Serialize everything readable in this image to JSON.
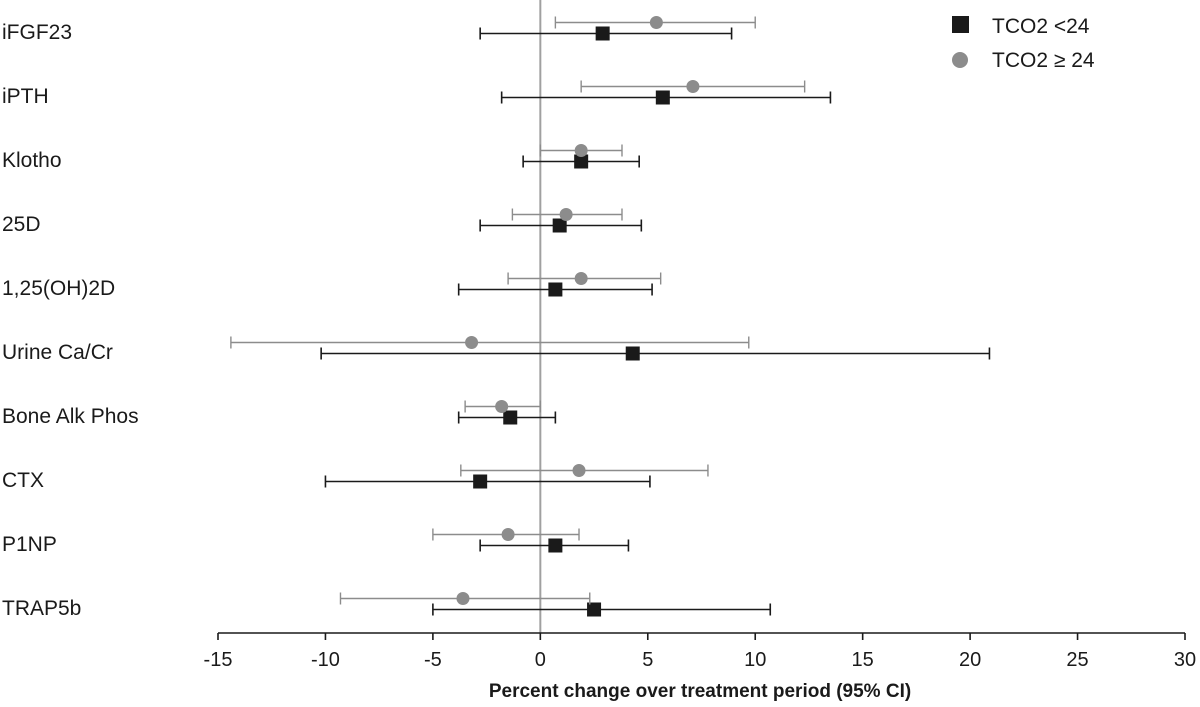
{
  "chart_data": {
    "type": "forest",
    "xlabel": "Percent change over treatment period (95% CI)",
    "xlim": [
      -15,
      30
    ],
    "xticks": [
      -15,
      -10,
      -5,
      0,
      5,
      10,
      15,
      20,
      25,
      30
    ],
    "reference_line": 0,
    "grid": false,
    "legend_position": "top-right",
    "categories": [
      "iFGF23",
      "iPTH",
      "Klotho",
      "25D",
      "1,25(OH)2D",
      "Urine Ca/Cr",
      "Bone Alk Phos",
      "CTX",
      "P1NP",
      "TRAP5b"
    ],
    "series": [
      {
        "name": "TCO2 <24",
        "marker": "square",
        "color": "#1a1a1a",
        "estimate": [
          2.9,
          5.7,
          1.9,
          0.9,
          0.7,
          4.3,
          -1.4,
          -2.8,
          0.7,
          2.5
        ],
        "lower": [
          -2.8,
          -1.8,
          -0.8,
          -2.8,
          -3.8,
          -10.2,
          -3.8,
          -10.0,
          -2.8,
          -5.0
        ],
        "upper": [
          8.9,
          13.5,
          4.6,
          4.7,
          5.2,
          20.9,
          0.7,
          5.1,
          4.1,
          10.7
        ]
      },
      {
        "name": "TCO2 ≥ 24",
        "marker": "circle",
        "color": "#8c8c8c",
        "estimate": [
          5.4,
          7.1,
          1.9,
          1.2,
          1.9,
          -3.2,
          -1.8,
          1.8,
          -1.5,
          -3.6
        ],
        "lower": [
          0.7,
          1.9,
          0.0,
          -1.3,
          -1.5,
          -14.4,
          -3.5,
          -3.7,
          -5.0,
          -9.3
        ],
        "upper": [
          10.0,
          12.3,
          3.8,
          3.8,
          5.6,
          9.7,
          0.0,
          7.8,
          1.8,
          2.3
        ]
      }
    ]
  }
}
